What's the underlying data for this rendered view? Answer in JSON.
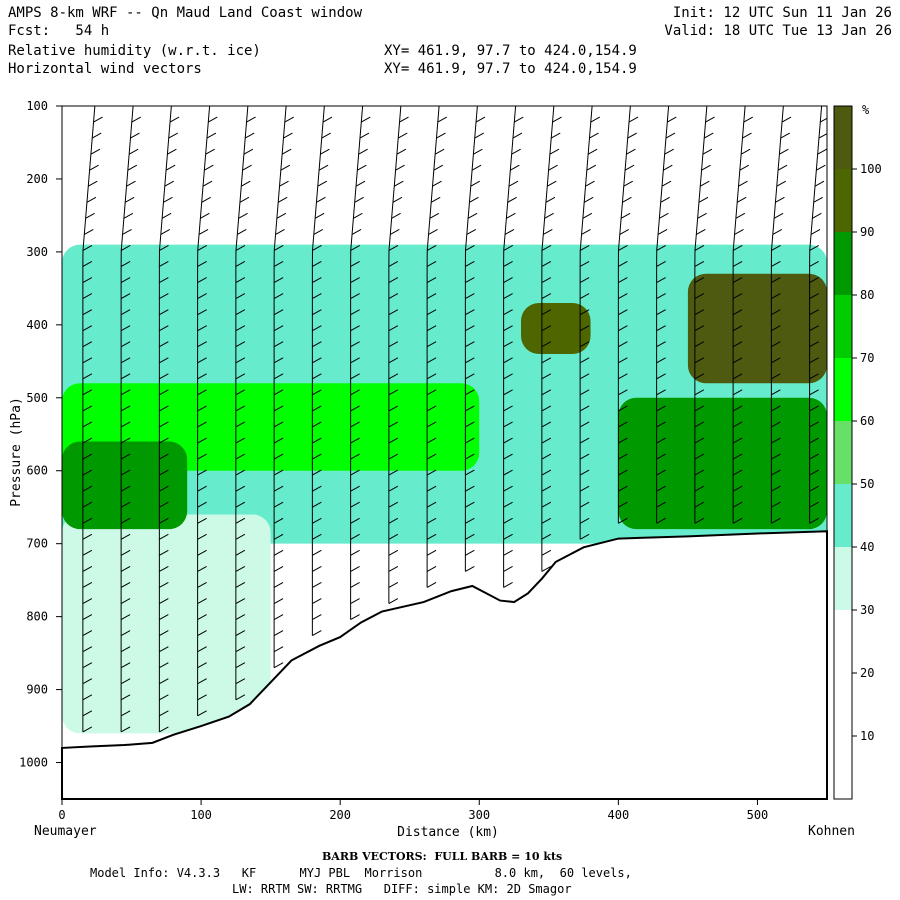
{
  "header": {
    "title": "AMPS 8-km WRF -- Qn Maud Land Coast window",
    "fcst": "Fcst:   54 h",
    "init": "Init: 12 UTC Sun 11 Jan 26",
    "valid": "Valid: 18 UTC Tue 13 Jan 26",
    "field1": "Relative humidity (w.r.t. ice)",
    "field2": "Horizontal wind vectors",
    "xy1": "XY= 461.9, 97.7 to 424.0,154.9",
    "xy2": "XY= 461.9, 97.7 to 424.0,154.9"
  },
  "chart_data": {
    "type": "heatmap",
    "title": "Relative humidity (w.r.t. ice)",
    "xlabel": "Distance (km)",
    "ylabel": "Pressure (hPa)",
    "xlim": [
      0,
      550
    ],
    "ylim": [
      1050,
      100
    ],
    "x_ticks": [
      0,
      100,
      200,
      300,
      400,
      500
    ],
    "y_ticks": [
      100,
      200,
      300,
      400,
      500,
      600,
      700,
      800,
      900,
      1000
    ],
    "start_label": "Neumayer",
    "end_label": "Kohnen",
    "colorbar": {
      "unit": "%",
      "levels": [
        10,
        20,
        30,
        40,
        50,
        60,
        70,
        80,
        90,
        100
      ],
      "colors": [
        "#ffffff",
        "#ffffff",
        "#ffffff",
        "#ccfae6",
        "#66eccc",
        "#66e066",
        "#00ff00",
        "#00cc00",
        "#009900",
        "#4d6600",
        "#4d5a10"
      ]
    },
    "terrain": {
      "distance_km": [
        0,
        20,
        45,
        65,
        80,
        100,
        120,
        135,
        150,
        165,
        185,
        200,
        215,
        230,
        260,
        280,
        295,
        305,
        315,
        325,
        335,
        345,
        355,
        375,
        400,
        450,
        500,
        550
      ],
      "pressure_hPa": [
        980,
        978,
        976,
        973,
        962,
        950,
        937,
        920,
        890,
        860,
        840,
        828,
        808,
        793,
        780,
        765,
        758,
        768,
        778,
        780,
        768,
        748,
        725,
        705,
        693,
        690,
        686,
        683
      ]
    },
    "rh_regions": [
      {
        "label": "40-50",
        "dist_km": [
          0,
          550
        ],
        "p_hPa": [
          290,
          700
        ],
        "rh": 45
      },
      {
        "label": "30-40",
        "dist_km": [
          0,
          150
        ],
        "p_hPa": [
          660,
          960
        ],
        "rh": 35
      },
      {
        "label": "60-70",
        "dist_km": [
          0,
          300
        ],
        "p_hPa": [
          480,
          600
        ],
        "rh": 65
      },
      {
        "label": "80-90",
        "dist_km": [
          0,
          90
        ],
        "p_hPa": [
          560,
          680
        ],
        "rh": 85
      },
      {
        "label": "90-100",
        "dist_km": [
          330,
          380
        ],
        "p_hPa": [
          370,
          440
        ],
        "rh": 95
      },
      {
        "label": "100+",
        "dist_km": [
          450,
          550
        ],
        "p_hPa": [
          330,
          480
        ],
        "rh": 102
      },
      {
        "label": "80-90",
        "dist_km": [
          400,
          550
        ],
        "p_hPa": [
          500,
          680
        ],
        "rh": 85
      }
    ],
    "wind_barbs": "full barb = 10 kts"
  },
  "footer": {
    "barb_note": "BARB VECTORS:  FULL BARB = 10 kts",
    "model1": "Model Info: V4.3.3   KF      MYJ PBL  Morrison          8.0 km,  60 levels,",
    "model2": "LW: RRTM SW: RRTMG   DIFF: simple KM: 2D Smagor"
  }
}
